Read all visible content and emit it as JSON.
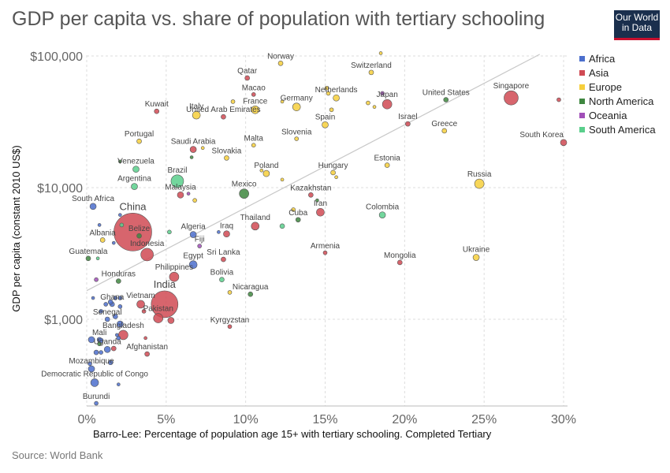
{
  "header": {
    "title": "GDP per capita vs. share of population with tertiary schooling",
    "logo_line1": "Our World",
    "logo_line2": "in Data",
    "source": "Source: World Bank"
  },
  "chart_data": {
    "type": "scatter",
    "title": "GDP per capita vs. share of population with tertiary schooling",
    "xlabel": "Barro-Lee: Percentage of population age 15+ with tertiary schooling. Completed Tertiary",
    "ylabel": "GDP per capita (constant 2010 US$)",
    "x_ticks": [
      "0%",
      "5%",
      "10%",
      "15%",
      "20%",
      "25%",
      "30%"
    ],
    "y_ticks": [
      "$1,000",
      "$10,000",
      "$100,000"
    ],
    "x_range": [
      0,
      30
    ],
    "y_range": [
      220,
      115000
    ],
    "y_scale": "log",
    "grid": true,
    "trend_line": [
      [
        0,
        1650
      ],
      [
        28.5,
        103000
      ]
    ],
    "legend": [
      {
        "name": "Africa",
        "color": "#4c6fcd"
      },
      {
        "name": "Asia",
        "color": "#d04a54"
      },
      {
        "name": "Europe",
        "color": "#f6cf3c"
      },
      {
        "name": "North America",
        "color": "#3f8740"
      },
      {
        "name": "Oceania",
        "color": "#a14fb8"
      },
      {
        "name": "South America",
        "color": "#5acf8c"
      }
    ],
    "points": [
      {
        "label": "Norway",
        "x": 12.2,
        "y": 88000,
        "r": 3,
        "region": "Europe"
      },
      {
        "label": "Switzerland",
        "x": 17.9,
        "y": 75000,
        "r": 3,
        "region": "Europe"
      },
      {
        "label": "Qatar",
        "x": 10.1,
        "y": 68000,
        "r": 3,
        "region": "Asia"
      },
      {
        "label": "Macao",
        "x": 10.5,
        "y": 51000,
        "r": 2.5,
        "region": "Asia"
      },
      {
        "label": "Netherlands",
        "x": 15.7,
        "y": 48000,
        "r": 4,
        "region": "Europe"
      },
      {
        "label": "United States",
        "x": 22.6,
        "y": 46500,
        "r": 3,
        "region": "North America"
      },
      {
        "label": "Singapore",
        "x": 26.7,
        "y": 48000,
        "r": 9,
        "region": "Asia"
      },
      {
        "label": "Japan",
        "x": 18.9,
        "y": 43000,
        "r": 6,
        "region": "Asia"
      },
      {
        "label": "Germany",
        "x": 13.2,
        "y": 41000,
        "r": 5,
        "region": "Europe"
      },
      {
        "label": "France",
        "x": 10.6,
        "y": 39000,
        "r": 5,
        "region": "Europe"
      },
      {
        "label": "Kuwait",
        "x": 4.4,
        "y": 38000,
        "r": 3,
        "region": "Asia"
      },
      {
        "label": "Italy",
        "x": 6.9,
        "y": 35500,
        "r": 5,
        "region": "Europe"
      },
      {
        "label": "United Arab Emirates",
        "x": 8.6,
        "y": 34500,
        "r": 3,
        "region": "Asia"
      },
      {
        "label": "Spain",
        "x": 15.0,
        "y": 30000,
        "r": 4,
        "region": "Europe"
      },
      {
        "label": "Israel",
        "x": 20.2,
        "y": 30500,
        "r": 3,
        "region": "Asia"
      },
      {
        "label": "Greece",
        "x": 22.5,
        "y": 27000,
        "r": 3,
        "region": "Europe"
      },
      {
        "label": "Slovenia",
        "x": 13.2,
        "y": 23500,
        "r": 2.5,
        "region": "Europe"
      },
      {
        "label": "South Korea",
        "x": 30.0,
        "y": 22000,
        "r": 4,
        "region": "Asia"
      },
      {
        "label": "Portugal",
        "x": 3.3,
        "y": 22500,
        "r": 3,
        "region": "Europe"
      },
      {
        "label": "Malta",
        "x": 10.5,
        "y": 21000,
        "r": 2.5,
        "region": "Europe"
      },
      {
        "label": "Saudi Arabia",
        "x": 6.7,
        "y": 19500,
        "r": 4,
        "region": "Asia"
      },
      {
        "label": "Slovakia",
        "x": 8.8,
        "y": 16800,
        "r": 3,
        "region": "Europe"
      },
      {
        "label": "Estonia",
        "x": 18.9,
        "y": 14800,
        "r": 3,
        "region": "Europe"
      },
      {
        "label": "Venezuela",
        "x": 3.1,
        "y": 13800,
        "r": 4,
        "region": "South America"
      },
      {
        "label": "Poland",
        "x": 11.3,
        "y": 12800,
        "r": 4,
        "region": "Europe"
      },
      {
        "label": "Hungary",
        "x": 15.5,
        "y": 13000,
        "r": 3,
        "region": "Europe"
      },
      {
        "label": "Brazil",
        "x": 5.7,
        "y": 11200,
        "r": 8,
        "region": "South America"
      },
      {
        "label": "Argentina",
        "x": 3.0,
        "y": 10200,
        "r": 4,
        "region": "South America"
      },
      {
        "label": "Russia",
        "x": 24.7,
        "y": 10700,
        "r": 6,
        "region": "Europe"
      },
      {
        "label": "Malaysia",
        "x": 5.9,
        "y": 8800,
        "r": 4,
        "region": "Asia"
      },
      {
        "label": "Mexico",
        "x": 9.9,
        "y": 9000,
        "r": 6,
        "region": "North America"
      },
      {
        "label": "Kazakhstan",
        "x": 14.1,
        "y": 8800,
        "r": 3,
        "region": "Asia"
      },
      {
        "label": "South Africa",
        "x": 0.4,
        "y": 7200,
        "r": 4,
        "region": "Africa"
      },
      {
        "label": "Iran",
        "x": 14.7,
        "y": 6500,
        "r": 5,
        "region": "Asia"
      },
      {
        "label": "Colombia",
        "x": 18.6,
        "y": 6200,
        "r": 4,
        "region": "South America"
      },
      {
        "label": "Cuba",
        "x": 13.3,
        "y": 5700,
        "r": 3,
        "region": "North America"
      },
      {
        "label": "Thailand",
        "x": 10.6,
        "y": 5100,
        "r": 5,
        "region": "Asia"
      },
      {
        "label": "China",
        "x": 2.9,
        "y": 4600,
        "r": 24,
        "region": "Asia"
      },
      {
        "label": "Belize",
        "x": 3.3,
        "y": 4300,
        "r": 3,
        "region": "North America"
      },
      {
        "label": "Algeria",
        "x": 6.7,
        "y": 4400,
        "r": 4,
        "region": "Africa"
      },
      {
        "label": "Iraq",
        "x": 8.8,
        "y": 4450,
        "r": 4,
        "region": "Asia"
      },
      {
        "label": "Albania",
        "x": 1.0,
        "y": 4000,
        "r": 3,
        "region": "Europe"
      },
      {
        "label": "Fiji",
        "x": 7.1,
        "y": 3600,
        "r": 2.5,
        "region": "Oceania"
      },
      {
        "label": "Indonesia",
        "x": 3.8,
        "y": 3100,
        "r": 8,
        "region": "Asia"
      },
      {
        "label": "Guatemala",
        "x": 0.1,
        "y": 2900,
        "r": 3,
        "region": "North America"
      },
      {
        "label": "Sri Lanka",
        "x": 8.6,
        "y": 2850,
        "r": 3,
        "region": "Asia"
      },
      {
        "label": "Armenia",
        "x": 15.0,
        "y": 3200,
        "r": 2.5,
        "region": "Asia"
      },
      {
        "label": "Mongolia",
        "x": 19.7,
        "y": 2700,
        "r": 3,
        "region": "Asia"
      },
      {
        "label": "Ukraine",
        "x": 24.5,
        "y": 2950,
        "r": 4,
        "region": "Europe"
      },
      {
        "label": "Egypt",
        "x": 6.7,
        "y": 2600,
        "r": 5,
        "region": "Africa"
      },
      {
        "label": "Philippines",
        "x": 5.5,
        "y": 2100,
        "r": 6,
        "region": "Asia"
      },
      {
        "label": "Bolivia",
        "x": 8.5,
        "y": 2000,
        "r": 3,
        "region": "South America"
      },
      {
        "label": "Honduras",
        "x": 2.0,
        "y": 1950,
        "r": 3,
        "region": "North America"
      },
      {
        "label": "India",
        "x": 4.9,
        "y": 1300,
        "r": 17,
        "region": "Asia"
      },
      {
        "label": "Nicaragua",
        "x": 10.3,
        "y": 1550,
        "r": 3,
        "region": "North America"
      },
      {
        "label": "Vietnam",
        "x": 3.4,
        "y": 1300,
        "r": 5,
        "region": "Asia"
      },
      {
        "label": "Ghana",
        "x": 1.6,
        "y": 1300,
        "r": 3,
        "region": "Africa"
      },
      {
        "label": "Pakistan",
        "x": 4.5,
        "y": 1020,
        "r": 6,
        "region": "Asia"
      },
      {
        "label": "Senegal",
        "x": 1.3,
        "y": 1000,
        "r": 3,
        "region": "Africa"
      },
      {
        "label": "Kyrgyzstan",
        "x": 9.0,
        "y": 880,
        "r": 2.5,
        "region": "Asia"
      },
      {
        "label": "Bangladesh",
        "x": 2.3,
        "y": 760,
        "r": 6,
        "region": "Asia"
      },
      {
        "label": "Mali",
        "x": 0.8,
        "y": 700,
        "r": 3,
        "region": "Africa"
      },
      {
        "label": "Uganda",
        "x": 1.3,
        "y": 590,
        "r": 4,
        "region": "Africa"
      },
      {
        "label": "Afghanistan",
        "x": 3.8,
        "y": 545,
        "r": 3,
        "region": "Asia"
      },
      {
        "label": "Mozambique",
        "x": 0.3,
        "y": 420,
        "r": 4,
        "region": "Africa"
      },
      {
        "label": "Democratic Republic of Congo",
        "x": 0.5,
        "y": 330,
        "r": 5,
        "region": "Africa"
      },
      {
        "label": "Burundi",
        "x": 0.6,
        "y": 230,
        "r": 2.5,
        "region": "Africa"
      },
      {
        "label": "",
        "x": 18.5,
        "y": 105000,
        "r": 2,
        "region": "Europe"
      },
      {
        "label": "",
        "x": 15.1,
        "y": 57000,
        "r": 2.5,
        "region": "Europe"
      },
      {
        "label": "",
        "x": 9.2,
        "y": 45000,
        "r": 2.5,
        "region": "Europe"
      },
      {
        "label": "",
        "x": 12.3,
        "y": 45000,
        "r": 2,
        "region": "Europe"
      },
      {
        "label": "",
        "x": 15.2,
        "y": 52000,
        "r": 2.5,
        "region": "Europe"
      },
      {
        "label": "",
        "x": 17.7,
        "y": 44000,
        "r": 2.5,
        "region": "Europe"
      },
      {
        "label": "",
        "x": 18.1,
        "y": 41000,
        "r": 2,
        "region": "Europe"
      },
      {
        "label": "",
        "x": 15.4,
        "y": 39000,
        "r": 2.5,
        "region": "Europe"
      },
      {
        "label": "",
        "x": 18.6,
        "y": 52000,
        "r": 2.5,
        "region": "Oceania"
      },
      {
        "label": "",
        "x": 29.7,
        "y": 46500,
        "r": 2.5,
        "region": "Asia"
      },
      {
        "label": "",
        "x": 7.3,
        "y": 20000,
        "r": 2,
        "region": "Europe"
      },
      {
        "label": "",
        "x": 6.6,
        "y": 17000,
        "r": 2,
        "region": "North America"
      },
      {
        "label": "",
        "x": 2.1,
        "y": 15800,
        "r": 2,
        "region": "North America"
      },
      {
        "label": "",
        "x": 11.0,
        "y": 13500,
        "r": 2,
        "region": "Europe"
      },
      {
        "label": "",
        "x": 12.3,
        "y": 11500,
        "r": 2,
        "region": "Europe"
      },
      {
        "label": "",
        "x": 15.7,
        "y": 12000,
        "r": 2,
        "region": "Europe"
      },
      {
        "label": "",
        "x": 6.8,
        "y": 8000,
        "r": 2.5,
        "region": "Europe"
      },
      {
        "label": "",
        "x": 6.4,
        "y": 9000,
        "r": 2,
        "region": "Oceania"
      },
      {
        "label": "",
        "x": 13.0,
        "y": 6800,
        "r": 2.5,
        "region": "Europe"
      },
      {
        "label": "",
        "x": 14.5,
        "y": 8000,
        "r": 2,
        "region": "North America"
      },
      {
        "label": "",
        "x": 12.3,
        "y": 5100,
        "r": 3,
        "region": "South America"
      },
      {
        "label": "",
        "x": 2.1,
        "y": 6200,
        "r": 2,
        "region": "Africa"
      },
      {
        "label": "",
        "x": 0.8,
        "y": 5200,
        "r": 2,
        "region": "Africa"
      },
      {
        "label": "",
        "x": 2.2,
        "y": 5200,
        "r": 2.5,
        "region": "South America"
      },
      {
        "label": "",
        "x": 5.2,
        "y": 4600,
        "r": 2.5,
        "region": "South America"
      },
      {
        "label": "",
        "x": 8.3,
        "y": 4600,
        "r": 2,
        "region": "Africa"
      },
      {
        "label": "",
        "x": 1.7,
        "y": 3800,
        "r": 2,
        "region": "Africa"
      },
      {
        "label": "",
        "x": 0.7,
        "y": 2900,
        "r": 2,
        "region": "South America"
      },
      {
        "label": "",
        "x": 9.0,
        "y": 1600,
        "r": 2.5,
        "region": "Europe"
      },
      {
        "label": "",
        "x": 0.6,
        "y": 2000,
        "r": 2.5,
        "region": "Oceania"
      },
      {
        "label": "",
        "x": 0.4,
        "y": 1450,
        "r": 2,
        "region": "Africa"
      },
      {
        "label": "",
        "x": 1.5,
        "y": 1350,
        "r": 3,
        "region": "Africa"
      },
      {
        "label": "",
        "x": 1.8,
        "y": 1450,
        "r": 2.5,
        "region": "Africa"
      },
      {
        "label": "",
        "x": 2.1,
        "y": 1450,
        "r": 2.5,
        "region": "Africa"
      },
      {
        "label": "",
        "x": 1.2,
        "y": 1300,
        "r": 2.5,
        "region": "Africa"
      },
      {
        "label": "",
        "x": 2.1,
        "y": 1250,
        "r": 2.5,
        "region": "Africa"
      },
      {
        "label": "",
        "x": 0.9,
        "y": 1150,
        "r": 2.5,
        "region": "Africa"
      },
      {
        "label": "",
        "x": 1.8,
        "y": 1050,
        "r": 3,
        "region": "Africa"
      },
      {
        "label": "",
        "x": 2.1,
        "y": 920,
        "r": 4,
        "region": "Africa"
      },
      {
        "label": "",
        "x": 3.6,
        "y": 1150,
        "r": 2.5,
        "region": "Asia"
      },
      {
        "label": "",
        "x": 5.3,
        "y": 980,
        "r": 4,
        "region": "Asia"
      },
      {
        "label": "",
        "x": 0.3,
        "y": 700,
        "r": 4,
        "region": "Africa"
      },
      {
        "label": "",
        "x": 0.9,
        "y": 690,
        "r": 3,
        "region": "Africa"
      },
      {
        "label": "",
        "x": 0.8,
        "y": 650,
        "r": 2.5,
        "region": "North America"
      },
      {
        "label": "",
        "x": 1.9,
        "y": 760,
        "r": 2,
        "region": "Africa"
      },
      {
        "label": "",
        "x": 2.0,
        "y": 720,
        "r": 2.5,
        "region": "Africa"
      },
      {
        "label": "",
        "x": 3.7,
        "y": 720,
        "r": 2,
        "region": "Asia"
      },
      {
        "label": "",
        "x": 0.6,
        "y": 560,
        "r": 3,
        "region": "Africa"
      },
      {
        "label": "",
        "x": 1.7,
        "y": 600,
        "r": 3,
        "region": "Asia"
      },
      {
        "label": "",
        "x": 0.9,
        "y": 560,
        "r": 2.5,
        "region": "Africa"
      },
      {
        "label": "",
        "x": 1.5,
        "y": 470,
        "r": 3,
        "region": "Africa"
      },
      {
        "label": "",
        "x": 0.2,
        "y": 460,
        "r": 2.5,
        "region": "Africa"
      },
      {
        "label": "",
        "x": 2.0,
        "y": 320,
        "r": 2,
        "region": "Africa"
      }
    ]
  }
}
